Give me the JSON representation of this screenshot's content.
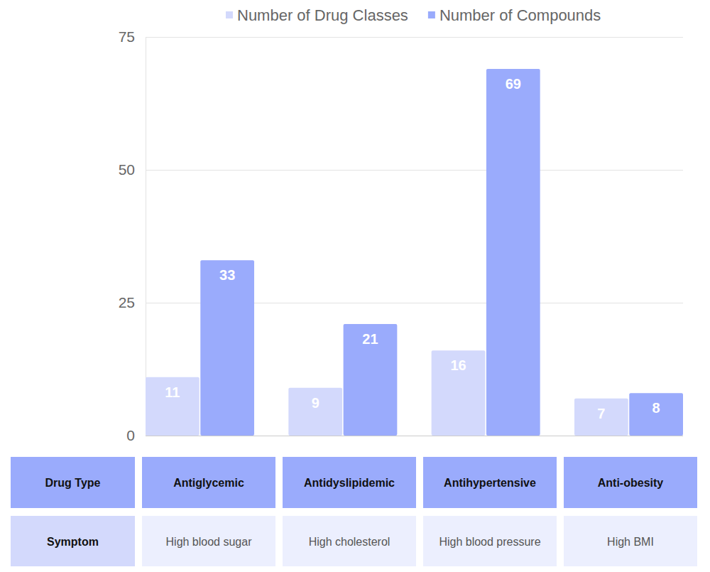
{
  "chart_data": {
    "type": "bar",
    "categories": [
      "Antiglycemic",
      "Antidyslipidemic",
      "Antihypertensive",
      "Anti-obesity"
    ],
    "series": [
      {
        "name": "Number of Drug Classes",
        "color": "#d3d9fc",
        "values": [
          11,
          9,
          16,
          7
        ]
      },
      {
        "name": "Number of Compounds",
        "color": "#9aabfc",
        "values": [
          33,
          21,
          69,
          8
        ]
      }
    ],
    "ylim": [
      0,
      75
    ],
    "yticks": [
      0,
      25,
      50,
      75
    ],
    "grid": true,
    "legend": "top",
    "data_labels": true,
    "x_label": "Drug Type",
    "symptom_label": "Symptom",
    "symptoms": [
      "High blood sugar",
      "High cholesterol",
      "High blood pressure",
      "High BMI"
    ]
  }
}
